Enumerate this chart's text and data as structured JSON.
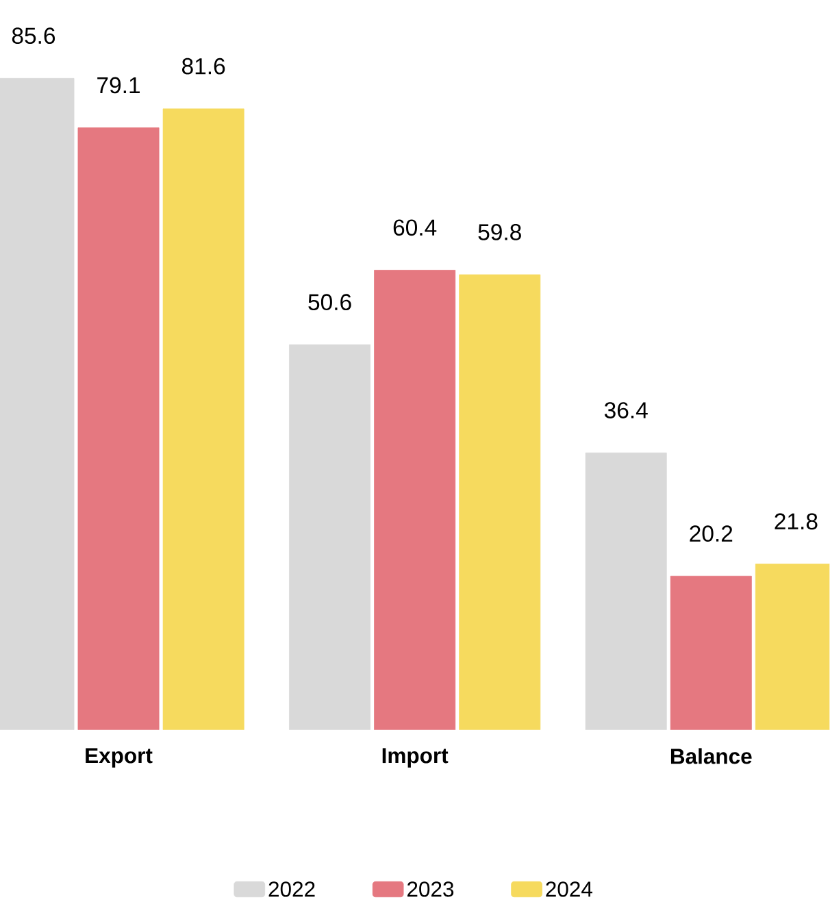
{
  "chart_data": {
    "type": "bar",
    "categories": [
      "Export",
      "Import",
      "Balance"
    ],
    "series": [
      {
        "name": "2022",
        "color": "#d9d9d9",
        "values": [
          85.6,
          50.6,
          36.4
        ]
      },
      {
        "name": "2023",
        "color": "#e57880",
        "values": [
          79.1,
          60.4,
          20.2
        ]
      },
      {
        "name": "2024",
        "color": "#f6da5e",
        "values": [
          81.6,
          59.8,
          21.8
        ]
      }
    ],
    "data_labels": true,
    "legend": "bottom",
    "grid": false
  }
}
